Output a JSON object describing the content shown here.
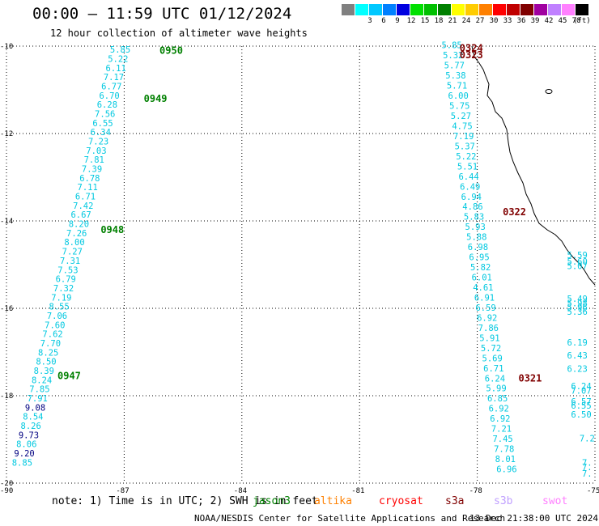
{
  "header": {
    "title": "00:00 – 11:59 UTC 01/12/2024",
    "subtitle": "12 hour collection of altimeter wave heights"
  },
  "color_scale": {
    "stops": [
      {
        "label": "",
        "color": "#808080"
      },
      {
        "label": "3",
        "color": "#00ffff"
      },
      {
        "label": "6",
        "color": "#00c8ff"
      },
      {
        "label": "9",
        "color": "#0080ff"
      },
      {
        "label": "12",
        "color": "#0000e0"
      },
      {
        "label": "15",
        "color": "#00e000"
      },
      {
        "label": "18",
        "color": "#00c000"
      },
      {
        "label": "21",
        "color": "#008000"
      },
      {
        "label": "24",
        "color": "#ffff00"
      },
      {
        "label": "27",
        "color": "#ffcc00"
      },
      {
        "label": "30",
        "color": "#ff8000"
      },
      {
        "label": "33",
        "color": "#ff0000"
      },
      {
        "label": "36",
        "color": "#c00000"
      },
      {
        "label": "39",
        "color": "#800000"
      },
      {
        "label": "42",
        "color": "#a000a0"
      },
      {
        "label": "45",
        "color": "#c080ff"
      },
      {
        "label": "70",
        "color": "#ff80ff"
      },
      {
        "label": "",
        "color": "#000000"
      }
    ],
    "unit": "(ft)"
  },
  "axes": {
    "lat_labels": [
      "-10",
      "-12",
      "-14",
      "-16",
      "-18",
      "-20"
    ],
    "lon_labels": [
      "-90",
      "-87",
      "-84",
      "-81",
      "-78",
      "-75"
    ],
    "lat_range": [
      -20,
      -10
    ],
    "lon_range": [
      -90,
      -75
    ]
  },
  "tracks": [
    {
      "name": "track-jason-west",
      "color": "#00c8e0",
      "start": [
        -87.1,
        -10.15
      ],
      "end": [
        -89.6,
        -19.6
      ],
      "values": [
        "5.85",
        "5.22",
        "6.11",
        "7.17",
        "6.77",
        "6.70",
        "6.28",
        "7.56",
        "6.55",
        "6.34",
        "7.23",
        "7.03",
        "7.81",
        "7.39",
        "6.78",
        "7.11",
        "6.71",
        "7.42",
        "6.67",
        "8.20",
        "7.26",
        "8.00",
        "7.27",
        "7.31",
        "7.53",
        "6.79",
        "7.32",
        "7.19",
        "8.55",
        "7.06",
        "7.60",
        "7.62",
        "7.70",
        "8.25",
        "8.50",
        "8.39",
        "8.24",
        "7.85",
        "7.91",
        "9.08",
        "8.54",
        "8.26",
        "9.73",
        "8.06",
        "9.20",
        "8.85"
      ],
      "value_colors": {
        "39": "#000080",
        "42": "#000080",
        "44": "#000080"
      }
    },
    {
      "name": "track-jason-east",
      "color": "#00c8e0",
      "start": [
        -78.65,
        -10.05
      ],
      "end": [
        -77.25,
        -19.75
      ],
      "values": [
        "5.85",
        "5.32",
        "5.77",
        "5.38",
        "5.71",
        "6.00",
        "5.75",
        "5.27",
        "4.75",
        "7.19",
        "5.37",
        "5.22",
        "5.51",
        "6.44",
        "6.49",
        "6.94",
        "4.86",
        "5.83",
        "5.93",
        "5.88",
        "6.98",
        "6.95",
        "5.82",
        "6.01",
        "4.61",
        "6.91",
        "6.59",
        "6.92",
        "7.86",
        "5.91",
        "5.72",
        "5.69",
        "6.71",
        "6.24",
        "5.99",
        "6.85",
        "6.92",
        "6.92",
        "7.21",
        "7.45",
        "7.78",
        "8.01",
        "6.96"
      ]
    },
    {
      "name": "track-far-east-upper",
      "color": "#00c8e0",
      "points": [
        [
          -75.45,
          -14.85,
          "5.59"
        ],
        [
          -75.45,
          -15.0,
          "5.60"
        ],
        [
          -75.45,
          -15.1,
          "5.07"
        ],
        [
          -75.45,
          -15.85,
          "5.49"
        ],
        [
          -75.45,
          -15.95,
          "5.98"
        ],
        [
          -75.45,
          -16.05,
          "5.96"
        ],
        [
          -75.45,
          -16.15,
          "5.36"
        ]
      ]
    },
    {
      "name": "track-far-east-lower",
      "color": "#00c8e0",
      "points": [
        [
          -75.45,
          -16.85,
          "6.19"
        ],
        [
          -75.45,
          -17.15,
          "6.43"
        ],
        [
          -75.45,
          -17.45,
          "6.23"
        ],
        [
          -75.35,
          -17.85,
          "6.24"
        ],
        [
          -75.35,
          -17.95,
          "7.07"
        ],
        [
          -75.35,
          -18.2,
          "6.57"
        ],
        [
          -75.35,
          -18.3,
          "6.55"
        ],
        [
          -75.35,
          -18.5,
          "6.50"
        ],
        [
          -75.2,
          -19.05,
          "7.2"
        ],
        [
          -75.2,
          -19.6,
          "7."
        ],
        [
          -75.2,
          -19.7,
          "7."
        ],
        [
          -75.2,
          -19.85,
          "7."
        ]
      ]
    }
  ],
  "time_labels": [
    {
      "text": "0950",
      "lon": -86.1,
      "lat": -10.1,
      "color": "#008000"
    },
    {
      "text": "0949",
      "lon": -86.5,
      "lat": -11.2,
      "color": "#008000"
    },
    {
      "text": "0948",
      "lon": -87.6,
      "lat": -14.2,
      "color": "#008000"
    },
    {
      "text": "0947",
      "lon": -88.7,
      "lat": -17.55,
      "color": "#008000"
    },
    {
      "text": "0324",
      "lon": -78.45,
      "lat": -10.05,
      "color": "#800000"
    },
    {
      "text": "0323",
      "lon": -78.45,
      "lat": -10.2,
      "color": "#800000"
    },
    {
      "text": "0322",
      "lon": -77.35,
      "lat": -13.8,
      "color": "#800000"
    },
    {
      "text": "0321",
      "lon": -76.95,
      "lat": -17.6,
      "color": "#800000"
    }
  ],
  "legend": {
    "note": "note: 1) Time is in UTC; 2) SWH is in feet",
    "items": [
      {
        "label": "jason3",
        "color": "#008000"
      },
      {
        "label": "altika",
        "color": "#ff8000"
      },
      {
        "label": "cryosat",
        "color": "#ff0000"
      },
      {
        "label": "s3a",
        "color": "#800000"
      },
      {
        "label": "s3b",
        "color": "#c0a0ff"
      },
      {
        "label": "swot",
        "color": "#ff80ff"
      }
    ]
  },
  "footer": {
    "credit": "NOAA/NESDIS Center for Satellite Applications and Research",
    "timestamp": "13 Dec 21:38:00 UTC 2024"
  }
}
